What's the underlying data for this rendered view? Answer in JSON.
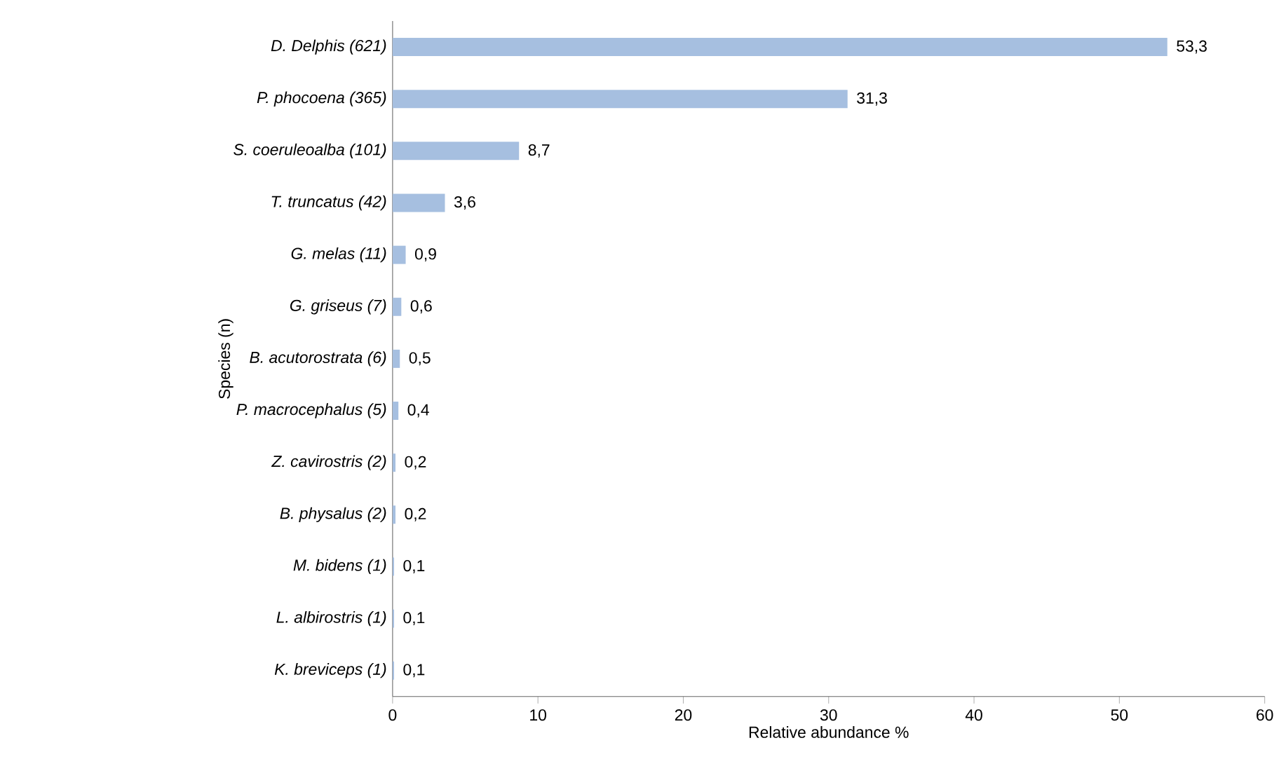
{
  "chart_data": {
    "type": "bar",
    "orientation": "horizontal",
    "categories": [
      "D.  Delphis (621)",
      "P. phocoena (365)",
      "S. coeruleoalba (101)",
      "T. truncatus (42)",
      "G. melas (11)",
      "G. griseus (7)",
      "B. acutorostrata (6)",
      "P. macrocephalus (5)",
      "Z. cavirostris (2)",
      "B. physalus (2)",
      "M. bidens (1)",
      "L. albirostris (1)",
      "K. breviceps (1)"
    ],
    "values": [
      53.3,
      31.3,
      8.7,
      3.6,
      0.9,
      0.6,
      0.5,
      0.4,
      0.2,
      0.2,
      0.1,
      0.1,
      0.1
    ],
    "value_labels": [
      "53,3",
      "31,3",
      "8,7",
      "3,6",
      "0,9",
      "0,6",
      "0,5",
      "0,4",
      "0,2",
      "0,2",
      "0,1",
      "0,1",
      "0,1"
    ],
    "color": "#a6bfe0",
    "xlim": [
      0,
      60
    ],
    "xticks": [
      0,
      10,
      20,
      30,
      40,
      50,
      60
    ],
    "xlabel": "Relative abundance %",
    "ylabel": "Species (n)"
  }
}
